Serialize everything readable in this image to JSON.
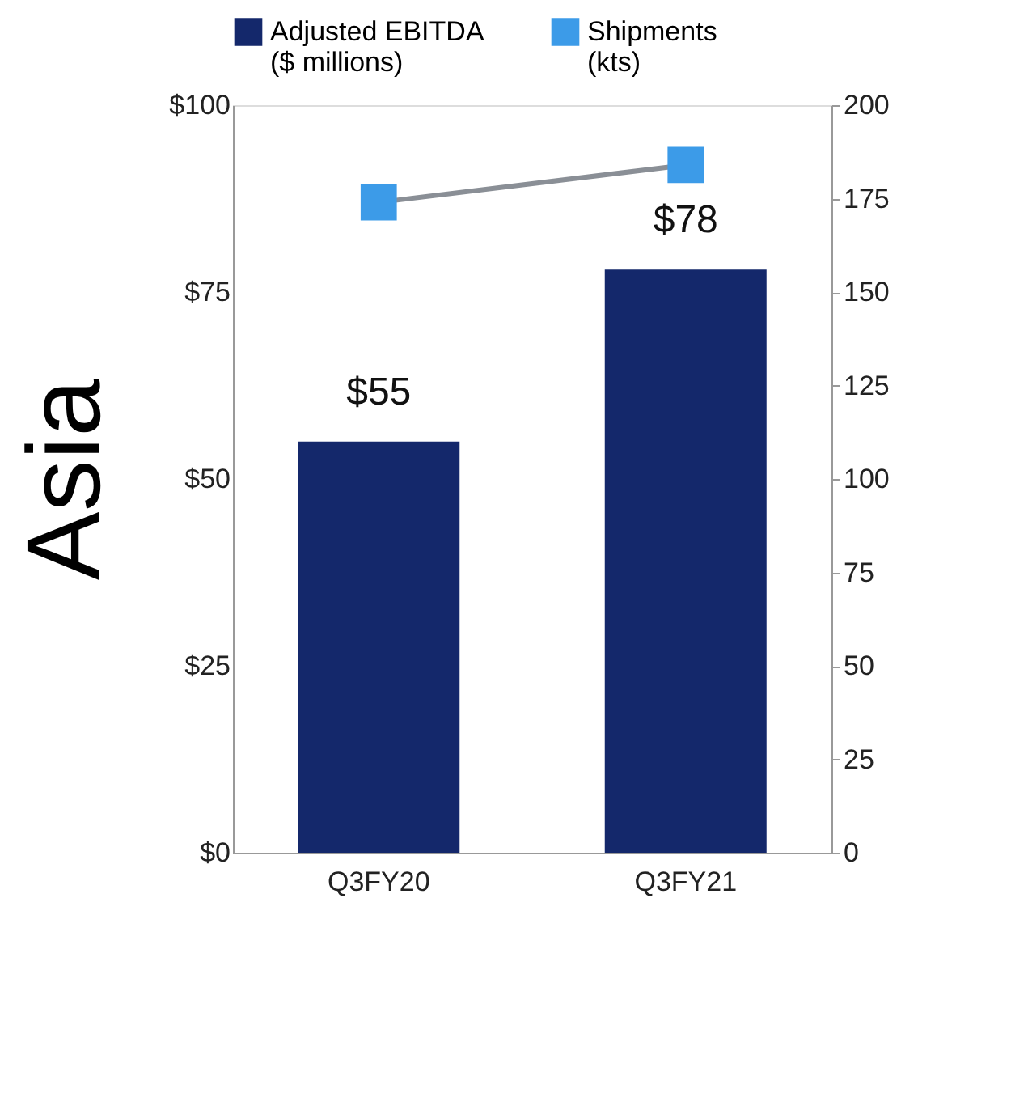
{
  "chart_data": {
    "type": "bar",
    "ylabel": "Asia",
    "categories": [
      "Q3FY20",
      "Q3FY21"
    ],
    "series": [
      {
        "name": "Adjusted EBITDA ($ millions)",
        "color": "#14286b",
        "values": [
          55,
          78
        ],
        "value_labels": [
          "$55",
          "$78"
        ]
      },
      {
        "name": "Shipments (kts)",
        "type": "line",
        "axis": "y2",
        "color": "#3c9be8",
        "values": [
          174,
          184
        ],
        "marker": "square"
      }
    ],
    "ylim": [
      0,
      100
    ],
    "yticks": [
      {
        "value": 0,
        "label": "$0"
      },
      {
        "value": 25,
        "label": "$25"
      },
      {
        "value": 50,
        "label": "$50"
      },
      {
        "value": 75,
        "label": "$75"
      },
      {
        "value": 100,
        "label": "$100"
      }
    ],
    "y2lim": [
      0,
      200
    ],
    "y2ticks": [
      0,
      25,
      50,
      75,
      100,
      125,
      150,
      175,
      200
    ],
    "legend": "top",
    "grid": false
  }
}
